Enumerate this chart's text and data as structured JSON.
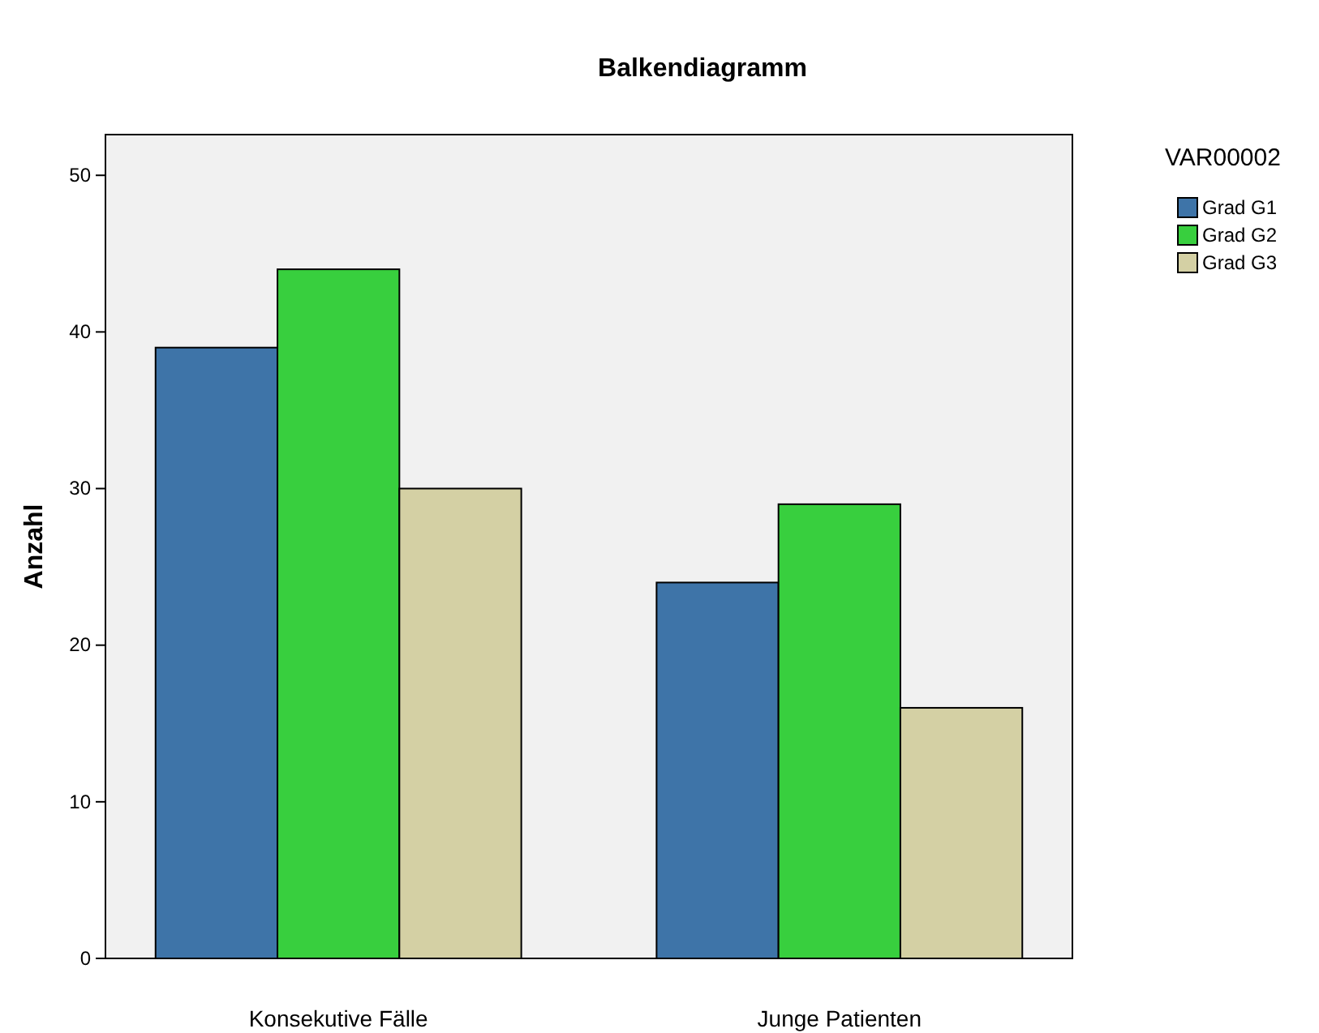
{
  "chart_data": {
    "type": "bar",
    "title": "Balkendiagramm",
    "ylabel": "Anzahl",
    "legend_title": "VAR00002",
    "legend": "top right",
    "categories": [
      "Konsekutive Fälle",
      "Junge Patienten"
    ],
    "series": [
      {
        "name": "Grad G1",
        "color": "#3e74a8",
        "values": [
          39,
          24
        ]
      },
      {
        "name": "Grad G2",
        "color": "#38cf3e",
        "values": [
          44,
          29
        ]
      },
      {
        "name": "Grad G3",
        "color": "#d4d0a4",
        "values": [
          30,
          16
        ]
      }
    ],
    "ylim": [
      0,
      52.6
    ],
    "yticks": [
      0,
      10,
      20,
      30,
      40,
      50
    ],
    "grid": false
  }
}
